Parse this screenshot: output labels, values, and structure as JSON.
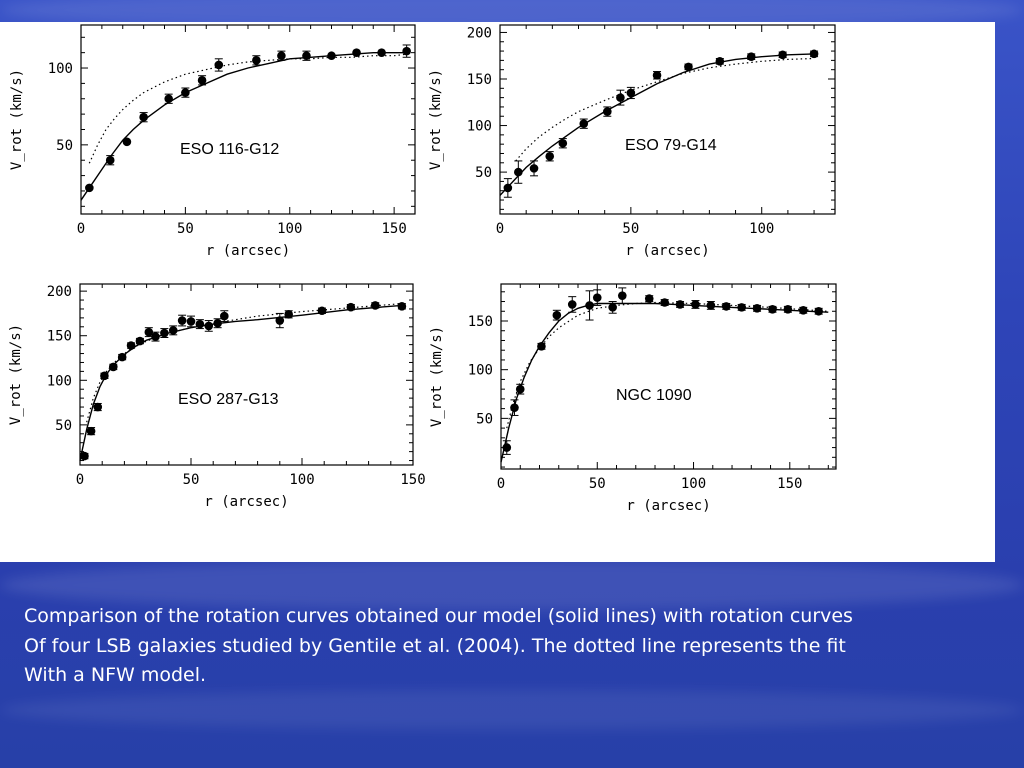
{
  "slide": {
    "caption_lines": [
      "Comparison of the rotation curves obtained our model (solid lines) with rotation curves",
      "Of four LSB galaxies studied by Gentile et al. (2004). The dotted line represents the fit",
      "With a NFW model."
    ],
    "background_color": "#2e45b8",
    "panel_color": "#ffffff"
  },
  "chart_data": [
    {
      "type": "scatter",
      "title": "ESO 116-G12",
      "xlabel": "r (arcsec)",
      "ylabel": "V_rot (km/s)",
      "xlim": [
        0,
        160
      ],
      "ylim": [
        5,
        128
      ],
      "xticks": [
        0,
        50,
        100,
        150
      ],
      "yticks": [
        50,
        100
      ],
      "series": [
        {
          "kind": "data",
          "x": [
            4,
            14,
            22,
            30,
            42,
            50,
            58,
            66,
            84,
            96,
            108,
            120,
            132,
            144,
            156
          ],
          "y": [
            22,
            40,
            52,
            68,
            80,
            84,
            92,
            102,
            105,
            108,
            108,
            108,
            110,
            110,
            111
          ],
          "err": [
            2,
            3,
            2,
            3,
            3,
            3,
            3,
            4,
            3,
            3,
            3,
            2,
            2,
            2,
            4
          ]
        },
        {
          "kind": "model",
          "style": "solid",
          "x": [
            0,
            5,
            10,
            15,
            20,
            25,
            30,
            40,
            50,
            60,
            70,
            80,
            90,
            100,
            110,
            120,
            130,
            140,
            150,
            156
          ],
          "y": [
            14,
            24,
            34,
            44,
            53,
            60,
            66,
            76,
            84,
            90,
            96,
            100,
            103,
            106,
            107,
            108,
            109,
            110,
            110,
            110
          ]
        },
        {
          "kind": "nfw",
          "style": "dotted",
          "x": [
            4,
            8,
            12,
            16,
            20,
            25,
            30,
            40,
            50,
            60,
            70,
            80,
            90,
            100,
            110,
            120,
            130,
            140,
            150,
            156
          ],
          "y": [
            38,
            50,
            60,
            67,
            73,
            79,
            84,
            91,
            96,
            99,
            102,
            104,
            105,
            106,
            106,
            107,
            107,
            108,
            108,
            109
          ]
        }
      ]
    },
    {
      "type": "scatter",
      "title": "ESO 79-G14",
      "xlabel": "r (arcsec)",
      "ylabel": "V_rot (km/s)",
      "xlim": [
        0,
        128
      ],
      "ylim": [
        5,
        208
      ],
      "xticks": [
        0,
        50,
        100
      ],
      "yticks": [
        50,
        100,
        150,
        200
      ],
      "series": [
        {
          "kind": "data",
          "x": [
            3,
            7,
            13,
            19,
            24,
            32,
            41,
            46,
            50,
            60,
            72,
            84,
            96,
            108,
            120
          ],
          "y": [
            33,
            50,
            54,
            67,
            81,
            102,
            115,
            130,
            135,
            154,
            163,
            169,
            174,
            176,
            177
          ],
          "err": [
            10,
            12,
            8,
            5,
            5,
            5,
            5,
            8,
            6,
            4,
            3,
            3,
            3,
            3,
            3
          ]
        },
        {
          "kind": "model",
          "style": "solid",
          "x": [
            0,
            5,
            10,
            15,
            20,
            25,
            30,
            40,
            50,
            60,
            70,
            80,
            90,
            100,
            110,
            120
          ],
          "y": [
            25,
            40,
            55,
            67,
            78,
            88,
            98,
            115,
            130,
            145,
            157,
            166,
            171,
            174,
            176,
            177
          ]
        },
        {
          "kind": "nfw",
          "style": "dotted",
          "x": [
            6,
            10,
            15,
            20,
            25,
            30,
            40,
            50,
            60,
            70,
            80,
            90,
            100,
            110,
            120
          ],
          "y": [
            62,
            75,
            88,
            98,
            107,
            115,
            127,
            138,
            147,
            156,
            162,
            166,
            169,
            171,
            172
          ]
        }
      ]
    },
    {
      "type": "scatter",
      "title": "ESO 287-G13",
      "xlabel": "r (arcsec)",
      "ylabel": "V_rot (km/s)",
      "xlim": [
        0,
        150
      ],
      "ylim": [
        5,
        208
      ],
      "xticks": [
        0,
        50,
        100,
        150
      ],
      "yticks": [
        50,
        100,
        150,
        200
      ],
      "series": [
        {
          "kind": "data",
          "x": [
            2,
            5,
            8,
            11,
            15,
            19,
            23,
            27,
            31,
            34,
            38,
            42,
            46,
            50,
            54,
            58,
            62,
            65,
            90,
            94,
            109,
            122,
            133,
            145
          ],
          "y": [
            15,
            43,
            70,
            105,
            115,
            126,
            139,
            144,
            154,
            149,
            153,
            156,
            167,
            166,
            163,
            161,
            164,
            172,
            167,
            174,
            178,
            182,
            184,
            183
          ],
          "err": [
            3,
            4,
            4,
            3,
            3,
            3,
            3,
            3,
            5,
            5,
            5,
            5,
            6,
            6,
            5,
            6,
            5,
            6,
            8,
            4,
            3,
            3,
            3,
            3
          ]
        },
        {
          "kind": "model",
          "style": "solid",
          "x": [
            0,
            3,
            6,
            9,
            12,
            15,
            20,
            25,
            30,
            40,
            50,
            60,
            70,
            80,
            100,
            120,
            145
          ],
          "y": [
            10,
            45,
            73,
            93,
            107,
            117,
            129,
            138,
            145,
            153,
            159,
            163,
            166,
            168,
            173,
            179,
            184
          ]
        },
        {
          "kind": "nfw",
          "style": "dotted",
          "x": [
            3,
            6,
            9,
            12,
            15,
            20,
            25,
            30,
            40,
            50,
            60,
            70,
            80,
            100,
            120,
            145
          ],
          "y": [
            53,
            80,
            98,
            110,
            119,
            130,
            138,
            144,
            153,
            159,
            164,
            168,
            172,
            177,
            181,
            186
          ]
        }
      ]
    },
    {
      "type": "scatter",
      "title": "NGC 1090",
      "xlabel": "r (arcsec)",
      "ylabel": "V_rot (km/s)",
      "xlim": [
        0,
        174
      ],
      "ylim": [
        -2,
        188
      ],
      "xticks": [
        0,
        50,
        100,
        150
      ],
      "yticks": [
        50,
        100,
        150
      ],
      "series": [
        {
          "kind": "data",
          "x": [
            3,
            7,
            10,
            21,
            29,
            37,
            46,
            50,
            58,
            63,
            77,
            85,
            93,
            101,
            109,
            117,
            125,
            133,
            141,
            149,
            157,
            165
          ],
          "y": [
            20,
            61,
            80,
            124,
            156,
            167,
            166,
            174,
            164,
            176,
            173,
            169,
            167,
            167,
            166,
            165,
            164,
            163,
            162,
            162,
            161,
            160
          ],
          "err": [
            7,
            8,
            5,
            3,
            5,
            8,
            15,
            8,
            6,
            8,
            3,
            3,
            3,
            4,
            4,
            3,
            3,
            3,
            3,
            3,
            3,
            3
          ]
        },
        {
          "kind": "model",
          "style": "solid",
          "x": [
            0,
            4,
            8,
            12,
            16,
            20,
            25,
            30,
            35,
            40,
            45,
            50,
            60,
            70,
            80,
            90,
            100,
            120,
            140,
            160,
            170
          ],
          "y": [
            5,
            40,
            70,
            92,
            110,
            124,
            138,
            150,
            158,
            163,
            166,
            168,
            168,
            168,
            168,
            167,
            166,
            164,
            162,
            160,
            159
          ]
        },
        {
          "kind": "nfw",
          "style": "dotted",
          "x": [
            3,
            6,
            10,
            15,
            20,
            25,
            30,
            40,
            50,
            60,
            70,
            80,
            100,
            120,
            140,
            170
          ],
          "y": [
            40,
            64,
            88,
            108,
            122,
            134,
            143,
            156,
            163,
            166,
            168,
            169,
            168,
            166,
            164,
            160
          ]
        }
      ]
    }
  ]
}
